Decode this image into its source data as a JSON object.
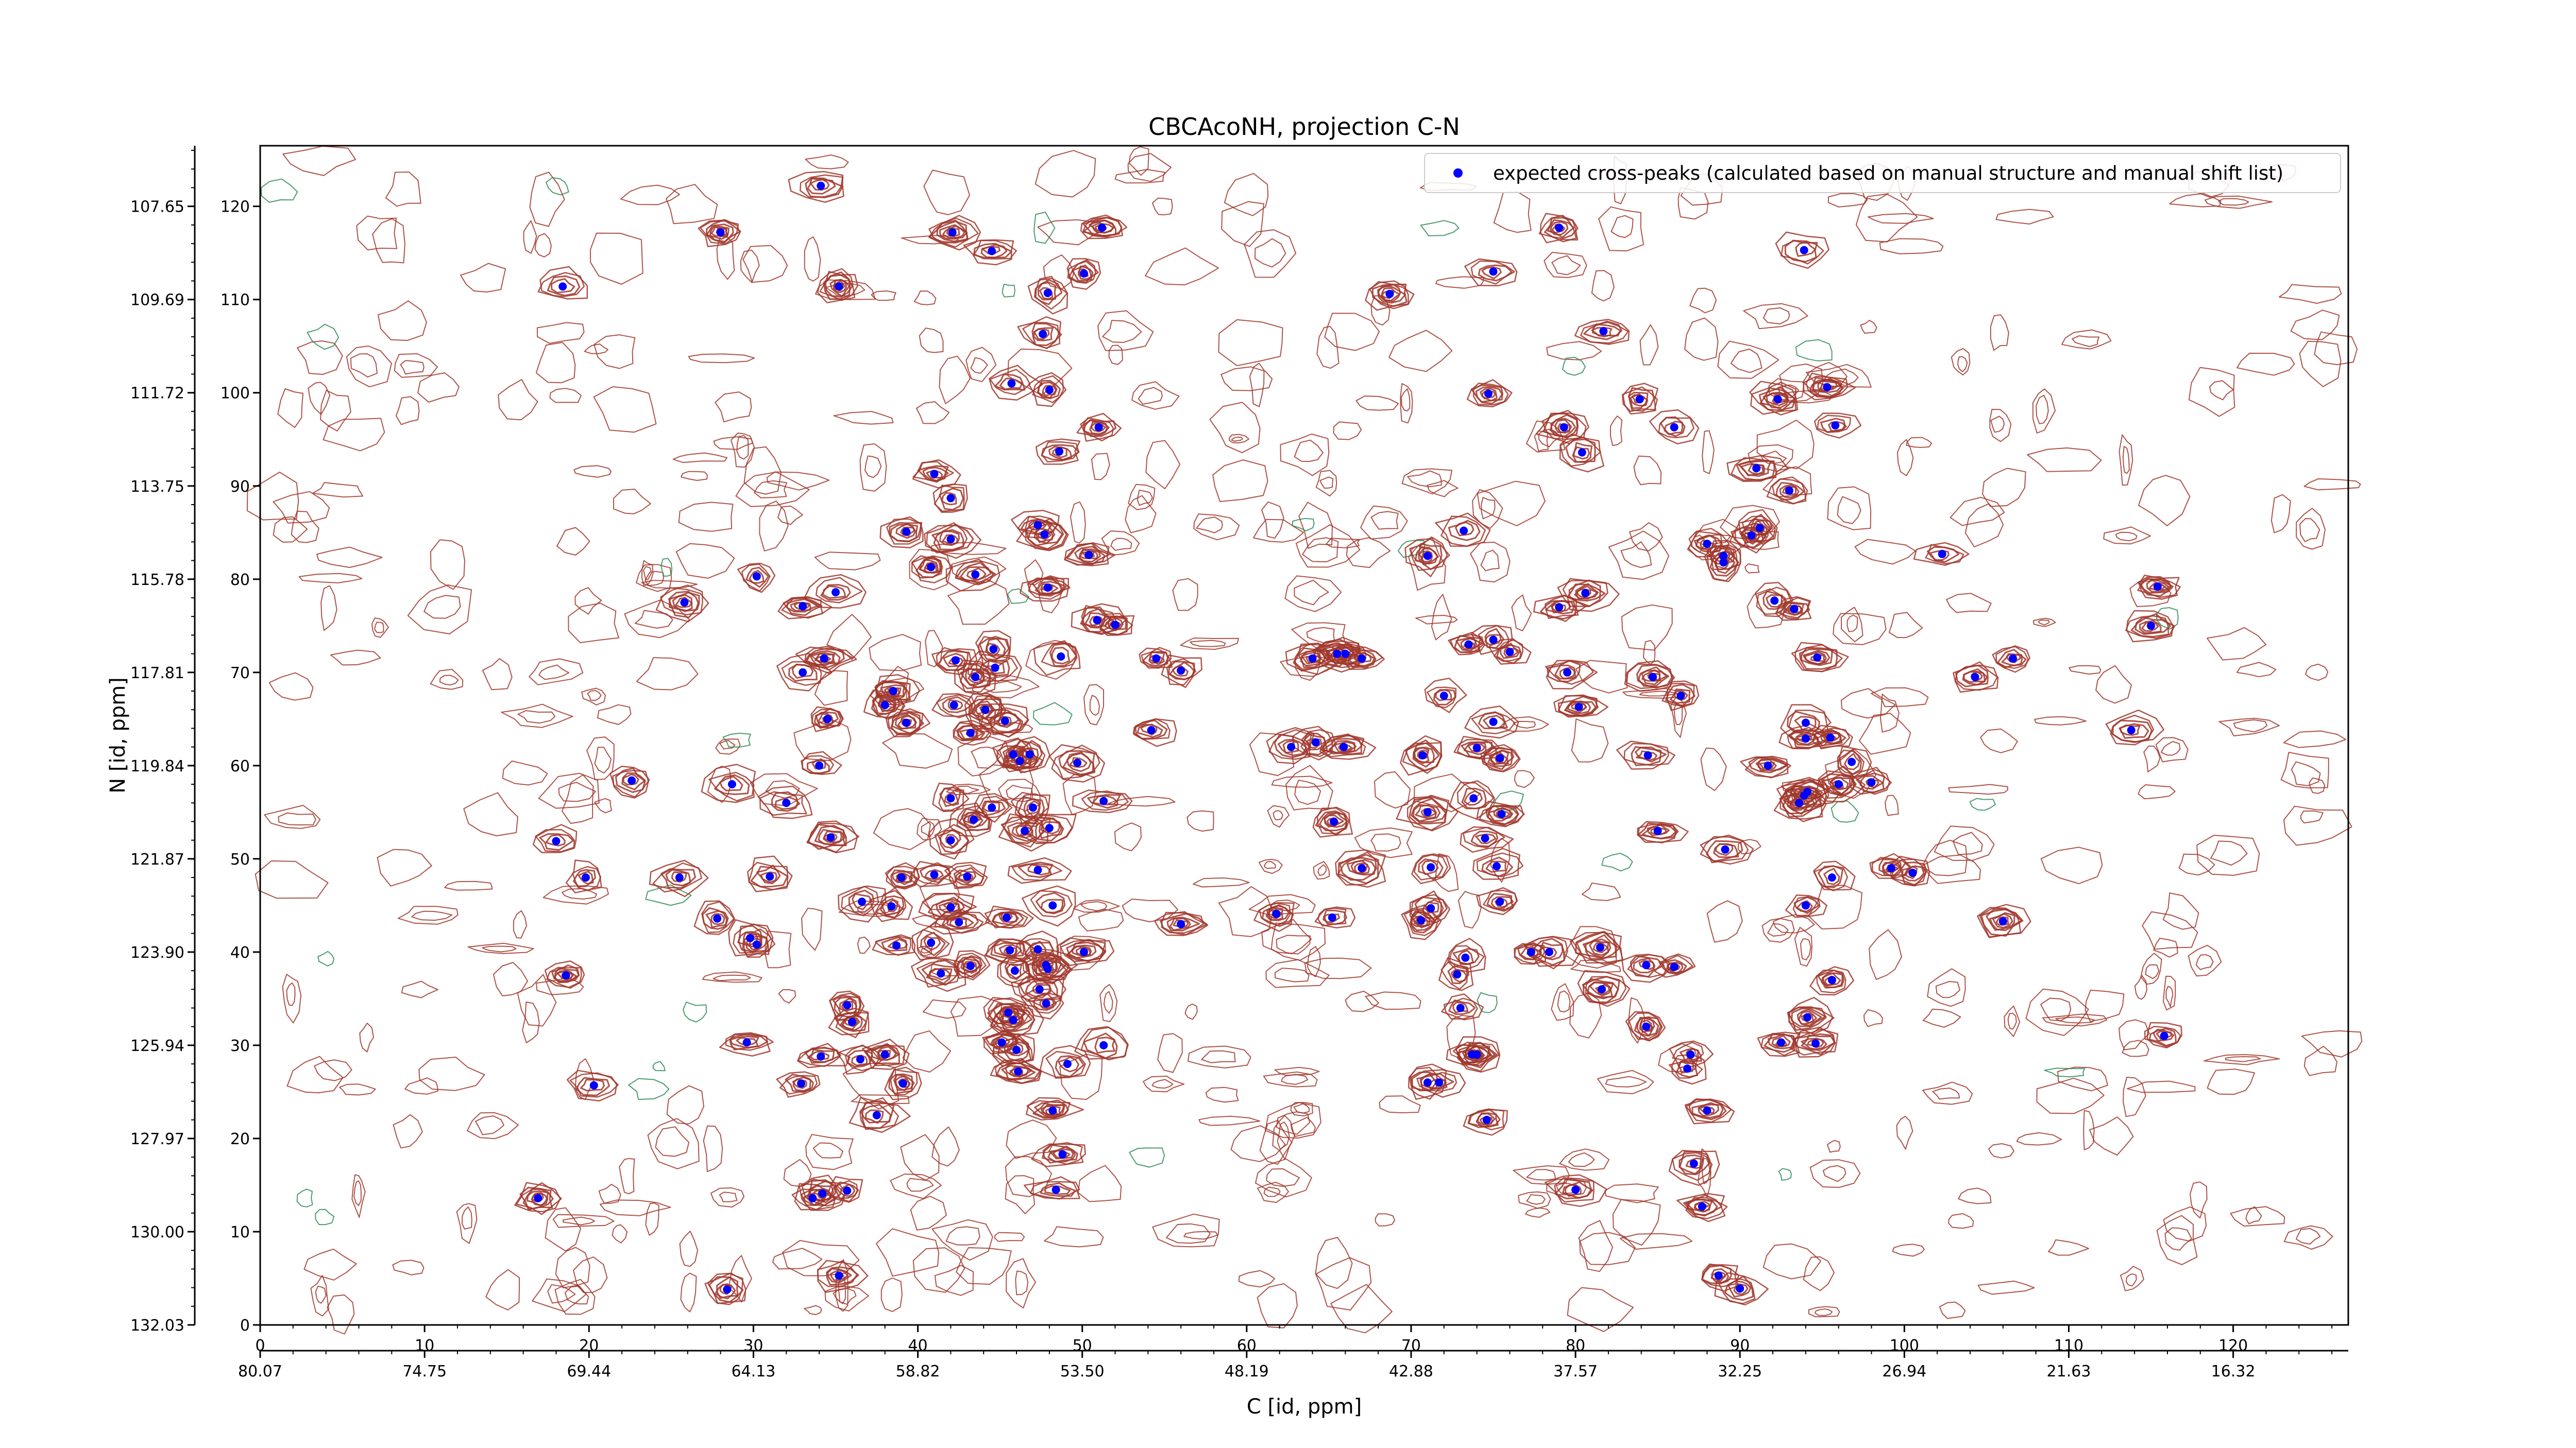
{
  "chart_data": {
    "type": "scatter",
    "title": "CBCAcoNH, projection C-N",
    "xlabel": "C [id, ppm]",
    "ylabel": "N [id, ppm]",
    "xlim": [
      0,
      127
    ],
    "ylim": [
      0,
      126.5
    ],
    "x_ticks": [
      0,
      10,
      20,
      30,
      40,
      50,
      60,
      70,
      80,
      90,
      100,
      110,
      120
    ],
    "y_ticks": [
      0,
      10,
      20,
      30,
      40,
      50,
      60,
      70,
      80,
      90,
      100,
      110,
      120
    ],
    "x_ppm_ticks": [
      "80.07",
      "74.75",
      "69.44",
      "64.13",
      "58.82",
      "53.50",
      "48.19",
      "42.88",
      "37.57",
      "32.25",
      "26.94",
      "21.63",
      "16.32"
    ],
    "y_ppm_ticks": [
      "107.65",
      "109.69",
      "111.72",
      "113.75",
      "115.78",
      "117.81",
      "119.84",
      "121.87",
      "123.90",
      "125.94",
      "127.97",
      "130.00",
      "132.03"
    ],
    "legend": {
      "position": "top-right",
      "label": "expected cross-peaks (calculated based on manual structure and manual shift list)"
    },
    "colors": {
      "contours": "#a0362a",
      "negative_contours": "#2e8b57",
      "markers": "#0000ff"
    },
    "series": [
      {
        "name": "expected cross-peaks (calculated based on manual structure and manual shift list)",
        "points": [
          [
            34.1,
            122.2
          ],
          [
            28,
            117.2
          ],
          [
            18.4,
            111.4
          ],
          [
            35.2,
            111.4
          ],
          [
            42.1,
            117.2
          ],
          [
            44.5,
            115.2
          ],
          [
            51.2,
            117.7
          ],
          [
            47.9,
            110.7
          ],
          [
            50.1,
            112.8
          ],
          [
            47.6,
            106.3
          ],
          [
            45.7,
            101.0
          ],
          [
            48.0,
            100.3
          ],
          [
            48.6,
            93.7
          ],
          [
            51.0,
            96.3
          ],
          [
            41.0,
            91.3
          ],
          [
            42.0,
            88.7
          ],
          [
            39.3,
            85.1
          ],
          [
            42.0,
            84.3
          ],
          [
            47.3,
            85.8
          ],
          [
            47.7,
            84.8
          ],
          [
            40.8,
            81.3
          ],
          [
            43.5,
            80.5
          ],
          [
            50.4,
            82.6
          ],
          [
            25.8,
            77.5
          ],
          [
            30.2,
            80.3
          ],
          [
            35.0,
            78.6
          ],
          [
            33.0,
            77.1
          ],
          [
            47.9,
            79.1
          ],
          [
            50.9,
            75.6
          ],
          [
            52.0,
            75.1
          ],
          [
            33.0,
            70.0
          ],
          [
            34.3,
            71.5
          ],
          [
            38.5,
            68.0
          ],
          [
            38.0,
            66.5
          ],
          [
            39.3,
            64.6
          ],
          [
            42.2,
            66.5
          ],
          [
            43.5,
            69.5
          ],
          [
            44.7,
            70.5
          ],
          [
            44.6,
            72.5
          ],
          [
            42.3,
            71.3
          ],
          [
            48.7,
            71.7
          ],
          [
            54.5,
            71.5
          ],
          [
            56.0,
            70.2
          ],
          [
            54.2,
            63.8
          ],
          [
            44.1,
            66.0
          ],
          [
            45.3,
            64.8
          ],
          [
            43.2,
            63.5
          ],
          [
            45.8,
            61.2
          ],
          [
            46.2,
            60.5
          ],
          [
            46.8,
            61.2
          ],
          [
            49.7,
            60.3
          ],
          [
            51.3,
            56.2
          ],
          [
            44.5,
            55.5
          ],
          [
            47.0,
            55.5
          ],
          [
            42.0,
            56.5
          ],
          [
            43.4,
            54.2
          ],
          [
            46.5,
            53.0
          ],
          [
            48.0,
            53.3
          ],
          [
            42.0,
            52.0
          ],
          [
            34.5,
            65.0
          ],
          [
            34.0,
            60.0
          ],
          [
            32.0,
            56.0
          ],
          [
            28.7,
            58.0
          ],
          [
            22.6,
            58.4
          ],
          [
            34.7,
            52.3
          ],
          [
            18.0,
            51.9
          ],
          [
            19.8,
            48.0
          ],
          [
            25.5,
            48.0
          ],
          [
            31.0,
            48.1
          ],
          [
            39.0,
            48.0
          ],
          [
            41.0,
            48.3
          ],
          [
            43.0,
            48.1
          ],
          [
            47.3,
            48.8
          ],
          [
            36.6,
            45.4
          ],
          [
            38.4,
            44.9
          ],
          [
            42.0,
            44.8
          ],
          [
            48.2,
            45.0
          ],
          [
            56.0,
            43.0
          ],
          [
            38.7,
            40.7
          ],
          [
            40.8,
            41.0
          ],
          [
            42.5,
            43.2
          ],
          [
            45.4,
            43.7
          ],
          [
            27.8,
            43.6
          ],
          [
            29.8,
            41.5
          ],
          [
            30.2,
            40.8
          ],
          [
            18.6,
            37.5
          ],
          [
            41.4,
            37.7
          ],
          [
            43.2,
            38.5
          ],
          [
            45.6,
            40.2
          ],
          [
            45.9,
            38.0
          ],
          [
            47.3,
            40.3
          ],
          [
            47.8,
            38.6
          ],
          [
            47.9,
            38.2
          ],
          [
            50.1,
            40.0
          ],
          [
            47.4,
            36.0
          ],
          [
            47.8,
            34.5
          ],
          [
            45.5,
            33.5
          ],
          [
            45.8,
            32.7
          ],
          [
            35.7,
            34.3
          ],
          [
            36.0,
            32.5
          ],
          [
            36.5,
            28.5
          ],
          [
            38.0,
            29.0
          ],
          [
            39.1,
            25.9
          ],
          [
            37.5,
            22.5
          ],
          [
            34.1,
            28.8
          ],
          [
            32.9,
            25.9
          ],
          [
            29.6,
            30.3
          ],
          [
            45.1,
            30.3
          ],
          [
            46.0,
            29.5
          ],
          [
            46.1,
            27.2
          ],
          [
            49.1,
            28.0
          ],
          [
            51.3,
            30.0
          ],
          [
            48.2,
            23.0
          ],
          [
            48.8,
            18.3
          ],
          [
            48.4,
            14.5
          ],
          [
            34.2,
            14.1
          ],
          [
            33.6,
            13.6
          ],
          [
            35.7,
            14.4
          ],
          [
            16.9,
            13.6
          ],
          [
            20.3,
            25.7
          ],
          [
            28.4,
            3.8
          ],
          [
            35.2,
            5.3
          ],
          [
            61.8,
            44.1
          ],
          [
            65.2,
            43.7
          ],
          [
            67.0,
            49.0
          ],
          [
            65.3,
            54.0
          ],
          [
            62.7,
            62.0
          ],
          [
            64.2,
            62.5
          ],
          [
            65.9,
            62.0
          ],
          [
            70.7,
            61.1
          ],
          [
            74.0,
            61.9
          ],
          [
            75.4,
            60.8
          ],
          [
            71.0,
            55.0
          ],
          [
            73.8,
            56.5
          ],
          [
            75.5,
            54.8
          ],
          [
            74.5,
            52.2
          ],
          [
            71.2,
            49.1
          ],
          [
            75.2,
            49.2
          ],
          [
            71.2,
            44.7
          ],
          [
            75.4,
            45.4
          ],
          [
            70.6,
            43.4
          ],
          [
            73.3,
            39.4
          ],
          [
            72.8,
            37.6
          ],
          [
            73.0,
            34.0
          ],
          [
            77.3,
            40.0
          ],
          [
            78.4,
            40.0
          ],
          [
            81.5,
            40.5
          ],
          [
            81.6,
            36.0
          ],
          [
            84.3,
            38.6
          ],
          [
            86.0,
            38.4
          ],
          [
            84.3,
            32.0
          ],
          [
            87.0,
            29.0
          ],
          [
            86.8,
            27.5
          ],
          [
            88.0,
            23.0
          ],
          [
            94.1,
            33.0
          ],
          [
            95.6,
            37.0
          ],
          [
            94.6,
            30.2
          ],
          [
            94.0,
            45.0
          ],
          [
            95.6,
            48.0
          ],
          [
            92.5,
            30.3
          ],
          [
            74.6,
            22.0
          ],
          [
            74.0,
            29.0
          ],
          [
            71.7,
            26.0
          ],
          [
            71.0,
            26.0
          ],
          [
            73.7,
            29.0
          ],
          [
            80.0,
            14.5
          ],
          [
            87.2,
            17.3
          ],
          [
            87.7,
            12.7
          ],
          [
            88.7,
            5.3
          ],
          [
            90.0,
            3.9
          ],
          [
            66.0,
            72.0
          ],
          [
            67.0,
            71.5
          ],
          [
            64.0,
            71.5
          ],
          [
            65.5,
            72.0
          ],
          [
            73.5,
            73.0
          ],
          [
            75.0,
            73.5
          ],
          [
            76.0,
            72.2
          ],
          [
            72.0,
            67.5
          ],
          [
            75.0,
            64.7
          ],
          [
            79.5,
            70.0
          ],
          [
            80.2,
            66.3
          ],
          [
            84.4,
            61.1
          ],
          [
            84.7,
            69.5
          ],
          [
            86.4,
            67.5
          ],
          [
            85.0,
            53.0
          ],
          [
            89.1,
            51.0
          ],
          [
            91.7,
            60.0
          ],
          [
            93.9,
            56.8
          ],
          [
            93.6,
            56.0
          ],
          [
            94.1,
            57.2
          ],
          [
            94.0,
            62.9
          ],
          [
            94.0,
            64.6
          ],
          [
            95.5,
            63.0
          ],
          [
            96.0,
            58.0
          ],
          [
            96.8,
            60.4
          ],
          [
            98.0,
            58.2
          ],
          [
            99.2,
            49.0
          ],
          [
            100.5,
            48.5
          ],
          [
            94.7,
            71.6
          ],
          [
            92.1,
            77.7
          ],
          [
            93.3,
            76.8
          ],
          [
            89.0,
            82.5
          ],
          [
            91.2,
            85.5
          ],
          [
            88.0,
            83.8
          ],
          [
            89.0,
            81.8
          ],
          [
            90.7,
            84.7
          ],
          [
            91.0,
            91.9
          ],
          [
            93.0,
            89.5
          ],
          [
            83.9,
            99.3
          ],
          [
            86.0,
            96.3
          ],
          [
            92.3,
            99.3
          ],
          [
            95.8,
            96.5
          ],
          [
            95.3,
            100.6
          ],
          [
            81.7,
            106.6
          ],
          [
            79.3,
            96.3
          ],
          [
            80.4,
            93.6
          ],
          [
            73.2,
            85.2
          ],
          [
            71.0,
            82.5
          ],
          [
            74.7,
            99.9
          ],
          [
            75.0,
            113.0
          ],
          [
            68.7,
            110.6
          ],
          [
            79.0,
            117.7
          ],
          [
            93.9,
            115.3
          ],
          [
            80.6,
            78.5
          ],
          [
            79.0,
            77.0
          ],
          [
            102.3,
            82.7
          ],
          [
            104.3,
            69.5
          ],
          [
            106.6,
            71.5
          ],
          [
            113.8,
            63.8
          ],
          [
            115.4,
            79.2
          ],
          [
            115.0,
            75.0
          ],
          [
            106.0,
            43.3
          ],
          [
            115.8,
            31.0
          ]
        ]
      }
    ]
  }
}
